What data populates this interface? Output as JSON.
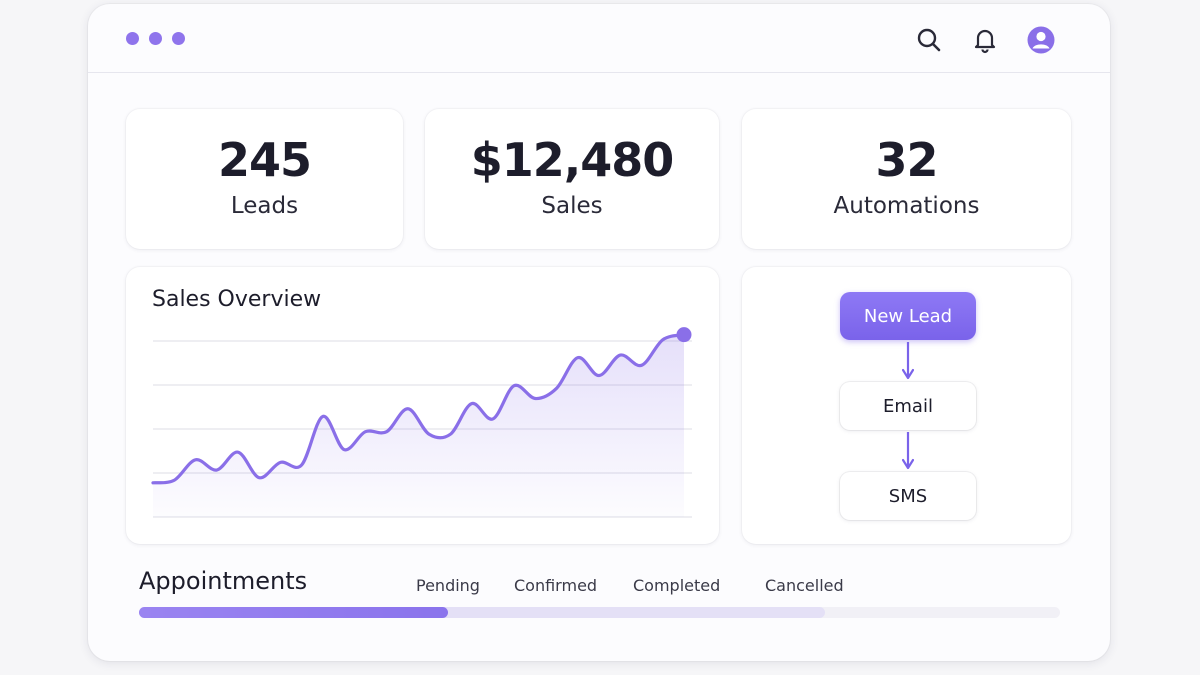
{
  "toolbar": {
    "icons": [
      "search-icon",
      "bell-icon",
      "user-avatar-icon"
    ]
  },
  "stats": [
    {
      "value": "245",
      "label": "Leads"
    },
    {
      "value": "$12,480",
      "label": "Sales"
    },
    {
      "value": "32",
      "label": "Automations"
    }
  ],
  "sales_overview": {
    "title": "Sales Overview"
  },
  "chart_data": {
    "type": "line",
    "title": "Sales Overview",
    "x": [
      0,
      1,
      2,
      3,
      4,
      5,
      6,
      7,
      8,
      9,
      10,
      11,
      12,
      13,
      14,
      15,
      16,
      17,
      18,
      19,
      20,
      21,
      22,
      23,
      24,
      25
    ],
    "values": [
      4,
      5,
      13,
      9,
      16,
      6,
      12,
      11,
      30,
      17,
      24,
      24,
      33,
      23,
      23,
      35,
      29,
      42,
      37,
      41,
      53,
      46,
      54,
      50,
      60,
      62
    ],
    "ylim": [
      0,
      65
    ],
    "grid": true,
    "accent": "#8a6fe8"
  },
  "workflow": {
    "nodes": [
      "New Lead",
      "Email",
      "SMS"
    ]
  },
  "appointments": {
    "title": "Appointments",
    "statuses": [
      "Pending",
      "Confirmed",
      "Completed",
      "Cancelled"
    ],
    "progress_primary": 0.335,
    "progress_secondary": 0.745
  },
  "colors": {
    "accent": "#8a6fe8",
    "text": "#1d1d2b"
  }
}
